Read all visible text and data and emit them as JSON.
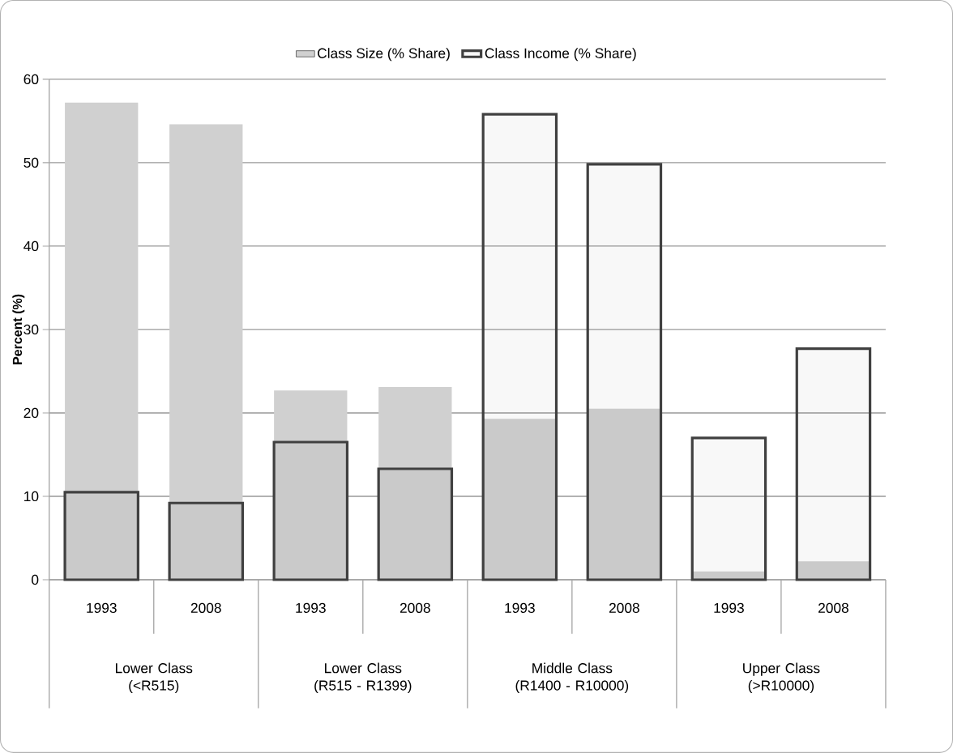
{
  "chart_data": {
    "type": "bar",
    "ylabel": "Percent (%)",
    "categories": [
      "1993",
      "2008",
      "1993",
      "2008",
      "1993",
      "2008",
      "1993",
      "2008"
    ],
    "series": [
      {
        "name": "Class Size (% Share)",
        "color": "#d0d0d0",
        "values": [
          57.2,
          54.6,
          22.7,
          23.1,
          19.3,
          20.5,
          1.0,
          2.2
        ]
      },
      {
        "name": "Class Income (% Share)",
        "color": "#404040",
        "values": [
          10.5,
          9.2,
          16.5,
          13.3,
          55.8,
          49.8,
          17.0,
          27.7
        ]
      }
    ],
    "annotations": [
      "Lower Class (<R515)",
      "Lower Class (R515 - R1399)",
      "Middle Class (R1400 - R10000)",
      "Upper Class (>R10000)"
    ],
    "ylim": [
      0,
      60
    ],
    "yticks": [
      0,
      10,
      20,
      30,
      40,
      50,
      60
    ],
    "grid": "y",
    "legend": "top"
  }
}
